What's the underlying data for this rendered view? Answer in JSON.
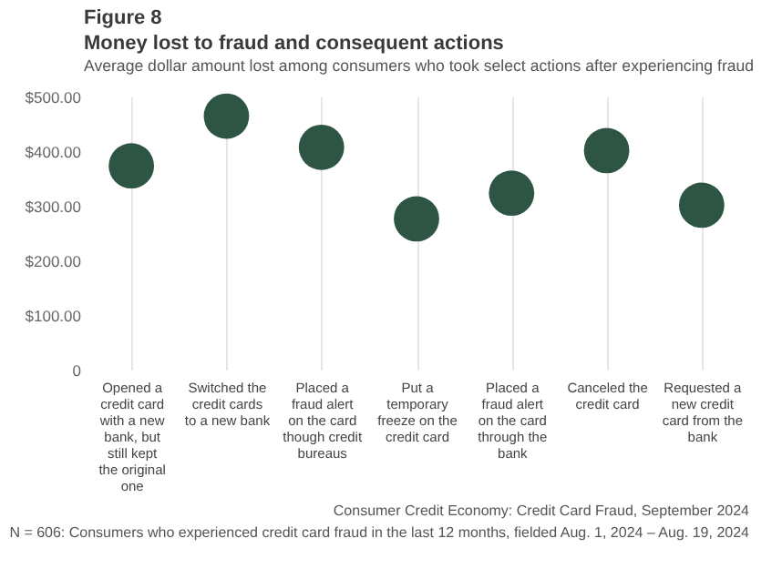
{
  "chart_data": {
    "type": "scatter",
    "title": "Money lost to fraud and consequent actions",
    "subtitle": "Average dollar amount lost among consumers who took select actions after experiencing fraud",
    "categories": [
      "Opened a credit card with a new bank, but still kept the original one",
      "Switched the credit cards to a new bank",
      "Placed a fraud alert on the card though credit bureaus",
      "Put a temporary freeze on the credit card",
      "Placed a fraud alert on the card through the bank",
      "Canceled the credit card",
      "Requested a new credit card from the bank"
    ],
    "values": [
      373,
      464,
      407,
      276,
      323,
      401,
      301
    ],
    "color": "#2e5543",
    "marker": "circle",
    "ylim": [
      0,
      500
    ],
    "yticks": [
      {
        "value": 0,
        "label": "0"
      },
      {
        "value": 100,
        "label": "$100.00"
      },
      {
        "value": 200,
        "label": "$200.00"
      },
      {
        "value": 300,
        "label": "$300.00"
      },
      {
        "value": 400,
        "label": "$400.00"
      },
      {
        "value": 500,
        "label": "$500.00"
      }
    ],
    "grid": "x",
    "annotations": [
      "Figure 8",
      "Consumer Credit Economy: Credit Card Fraud, September 2024",
      "N = 606: Consumers who experienced credit card fraud in the last 12 months, fielded Aug. 1, 2024 – Aug. 19, 2024"
    ]
  }
}
